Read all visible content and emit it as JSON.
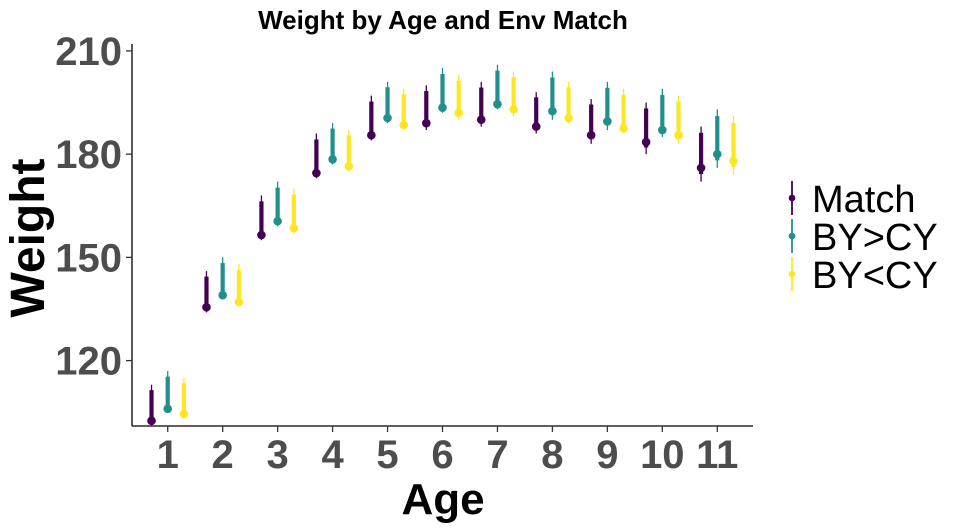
{
  "chart_data": {
    "type": "errorbar",
    "title": "Weight by Age and Env Match",
    "xlabel": "Age",
    "ylabel": "Weight",
    "categories": [
      "1",
      "2",
      "3",
      "4",
      "5",
      "6",
      "7",
      "8",
      "9",
      "10",
      "11"
    ],
    "ylim": [
      101,
      212
    ],
    "yticks": [
      120,
      150,
      180,
      210
    ],
    "grid": false,
    "legend_position": "right",
    "series": [
      {
        "name": "Match",
        "color": "#440154",
        "values": [
          102.5,
          135.5,
          156.5,
          174.5,
          185.5,
          189,
          190,
          188,
          185.5,
          183.5,
          176
        ],
        "low": [
          101,
          134,
          155,
          173,
          184,
          187,
          188,
          186,
          183,
          180,
          172
        ],
        "high": [
          113,
          146,
          168,
          186,
          197,
          200,
          201,
          198,
          196,
          195,
          188
        ]
      },
      {
        "name": "BY>CY",
        "color": "#21908C",
        "values": [
          106,
          139,
          160.5,
          178.5,
          190.5,
          193.5,
          194.5,
          192.5,
          189.5,
          187,
          180
        ],
        "low": [
          105,
          138,
          159,
          177,
          189,
          192,
          193,
          190,
          187,
          185,
          176
        ],
        "high": [
          117,
          150,
          172,
          189,
          201,
          205,
          206,
          204,
          201,
          199,
          193
        ]
      },
      {
        "name": "BY<CY",
        "color": "#FDE725",
        "values": [
          104.5,
          137,
          158.5,
          176.5,
          188.5,
          192,
          193,
          190.5,
          187.5,
          185.5,
          178
        ],
        "low": [
          103,
          136,
          157,
          175,
          187,
          190,
          191,
          189,
          186,
          183,
          174
        ],
        "high": [
          115,
          148,
          170,
          187,
          199,
          203,
          204,
          201,
          199,
          197,
          191
        ]
      }
    ]
  }
}
